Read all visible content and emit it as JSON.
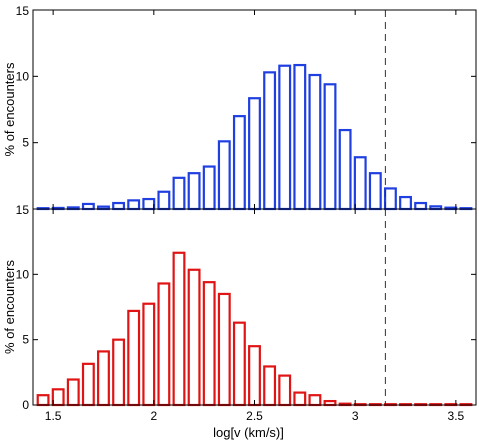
{
  "chart_data": [
    {
      "type": "bar",
      "panel": "top",
      "color": "#1f3fe0",
      "ylabel": "% of encounters",
      "xlabel": "",
      "xlim": [
        1.4,
        3.6
      ],
      "ylim": [
        0,
        15
      ],
      "yticks": [
        0,
        5,
        10,
        15
      ],
      "ytick_labels": [
        "",
        "5",
        "10",
        "15"
      ],
      "xticks": [
        1.5,
        2,
        2.5,
        3,
        3.5
      ],
      "show_xtick_labels": false,
      "bin_width": 0.075,
      "reference_line_x": 3.15,
      "x": [
        1.45,
        1.525,
        1.6,
        1.675,
        1.75,
        1.825,
        1.9,
        1.975,
        2.05,
        2.125,
        2.2,
        2.275,
        2.35,
        2.425,
        2.5,
        2.575,
        2.65,
        2.725,
        2.8,
        2.875,
        2.95,
        3.025,
        3.1,
        3.175,
        3.25,
        3.325,
        3.4,
        3.475,
        3.55
      ],
      "values": [
        0.05,
        0.08,
        0.12,
        0.38,
        0.18,
        0.45,
        0.65,
        0.75,
        1.3,
        2.35,
        2.7,
        3.2,
        5.1,
        7.0,
        8.35,
        10.3,
        10.8,
        10.85,
        10.1,
        9.4,
        5.95,
        3.9,
        2.7,
        1.55,
        0.9,
        0.45,
        0.2,
        0.1,
        0.05
      ]
    },
    {
      "type": "bar",
      "panel": "bottom",
      "color": "#e01414",
      "ylabel": "% of encounters",
      "xlabel": "log[v (km/s)]",
      "xlim": [
        1.4,
        3.6
      ],
      "ylim": [
        0,
        15
      ],
      "yticks": [
        0,
        5,
        10,
        15
      ],
      "ytick_labels": [
        "0",
        "5",
        "10",
        "15"
      ],
      "xticks": [
        1.5,
        2,
        2.5,
        3,
        3.5
      ],
      "xtick_labels": [
        "1.5",
        "2",
        "2.5",
        "3",
        "3.5"
      ],
      "show_xtick_labels": true,
      "bin_width": 0.075,
      "reference_line_x": 3.15,
      "x": [
        1.45,
        1.525,
        1.6,
        1.675,
        1.75,
        1.825,
        1.9,
        1.975,
        2.05,
        2.125,
        2.2,
        2.275,
        2.35,
        2.425,
        2.5,
        2.575,
        2.65,
        2.725,
        2.8,
        2.875,
        2.95,
        3.025,
        3.1,
        3.175,
        3.25,
        3.325,
        3.4,
        3.475,
        3.55
      ],
      "values": [
        0.75,
        1.2,
        1.95,
        3.15,
        4.1,
        5.0,
        7.2,
        7.75,
        9.3,
        11.65,
        10.35,
        9.4,
        8.5,
        6.3,
        4.5,
        2.95,
        2.25,
        0.95,
        0.75,
        0.3,
        0.1,
        0.05,
        0.03,
        0.05,
        0.05,
        0.03,
        0.02,
        0.02,
        0.02
      ]
    }
  ]
}
